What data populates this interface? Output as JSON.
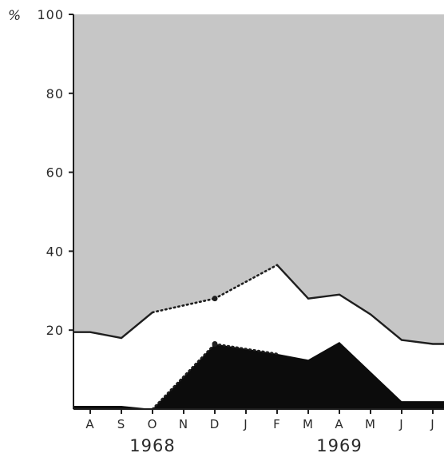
{
  "chart_data": {
    "type": "area",
    "y_unit_label": "%",
    "ylim": [
      0,
      100
    ],
    "y_ticks": [
      {
        "value": 20,
        "label": "20"
      },
      {
        "value": 40,
        "label": "40"
      },
      {
        "value": 60,
        "label": "60"
      },
      {
        "value": 80,
        "label": "80"
      },
      {
        "value": 100,
        "label": "100"
      }
    ],
    "categories": [
      "A",
      "S",
      "O",
      "N",
      "D",
      "J",
      "F",
      "M",
      "A",
      "M",
      "J",
      "J"
    ],
    "year_labels": [
      {
        "label": "1968",
        "from_index": 0,
        "to_index": 4
      },
      {
        "label": "1969",
        "from_index": 5,
        "to_index": 11
      }
    ],
    "series": [
      {
        "fill": "black",
        "values": [
          0.8,
          0.8,
          0,
          null,
          16.5,
          null,
          14,
          12.5,
          17,
          null,
          2,
          2
        ],
        "dotted_segments": [
          [
            2,
            4
          ],
          [
            4,
            6
          ]
        ]
      },
      {
        "fill": "white",
        "upper_boundary": [
          19.5,
          18,
          24.5,
          null,
          28,
          null,
          36.5,
          28,
          29,
          24,
          17.5,
          16.5
        ],
        "dotted_segments": [
          [
            2,
            4
          ],
          [
            4,
            6
          ]
        ]
      },
      {
        "fill": "grey",
        "upper_boundary": [
          100,
          100,
          100,
          100,
          100,
          100,
          100,
          100,
          100,
          100,
          100,
          100
        ]
      }
    ],
    "colors": {
      "grey_fill": "#c6c6c6",
      "black_fill": "#0c0c0c",
      "white_fill": "#ffffff",
      "line": "#1e1e1e"
    },
    "grid": false
  }
}
